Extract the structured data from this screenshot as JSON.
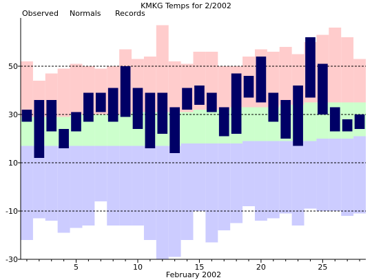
{
  "chart_data": {
    "type": "bar",
    "title": "KMKG Temps for 2/2002",
    "xlabel": "February 2002",
    "ylabel": "",
    "ylim": [
      -30,
      70
    ],
    "xlim": [
      0.5,
      28.5
    ],
    "x_ticks": [
      5,
      10,
      15,
      20,
      25
    ],
    "y_ticks": [
      -30,
      -10,
      10,
      30,
      50
    ],
    "dashed_gridlines_y": [
      -10,
      10,
      30,
      50
    ],
    "legend": {
      "placement": "top-left",
      "entries": [
        "Observed",
        "Normals",
        "Records"
      ]
    },
    "colors": {
      "observed": "#000066",
      "normals": "#ccffcc",
      "records_high": "#ffcccc",
      "records_low": "#ccccff",
      "legend_observed": "#000080",
      "legend_normals": "#008000",
      "legend_records": "#ff88ff"
    },
    "days": [
      1,
      2,
      3,
      4,
      5,
      6,
      7,
      8,
      9,
      10,
      11,
      12,
      13,
      14,
      15,
      16,
      17,
      18,
      19,
      20,
      21,
      22,
      23,
      24,
      25,
      26,
      27,
      28
    ],
    "series": [
      {
        "name": "Observed",
        "high": [
          32,
          36,
          36,
          24,
          31,
          39,
          39,
          41,
          50,
          41,
          39,
          39,
          33,
          41,
          42,
          39,
          33,
          47,
          46,
          54,
          39,
          36,
          42,
          62,
          51,
          33,
          28,
          30
        ],
        "low": [
          27,
          12,
          23,
          16,
          23,
          27,
          31,
          27,
          29,
          24,
          16,
          22,
          14,
          32,
          34,
          31,
          21,
          22,
          37,
          35,
          27,
          20,
          17,
          37,
          30,
          23,
          23,
          24
        ]
      },
      {
        "name": "Normals",
        "high": [
          29,
          29,
          29,
          29,
          30,
          30,
          30,
          30,
          30,
          31,
          31,
          31,
          31,
          31,
          32,
          32,
          32,
          33,
          33,
          33,
          33,
          34,
          34,
          35,
          35,
          35,
          35,
          35
        ]
      },
      {
        "name": "Normals low",
        "values": [
          17,
          17,
          17,
          17,
          17,
          17,
          17,
          17,
          17,
          17,
          17,
          17,
          17,
          18,
          18,
          18,
          18,
          18,
          19,
          19,
          19,
          19,
          19,
          19,
          20,
          20,
          20,
          21
        ]
      },
      {
        "name": "Records",
        "high": [
          52,
          44,
          47,
          49,
          51,
          50,
          49,
          50,
          57,
          53,
          54,
          67,
          52,
          51,
          56,
          56,
          50,
          50,
          54,
          57,
          56,
          58,
          55,
          60,
          63,
          66,
          62,
          53
        ]
      },
      {
        "name": "Records low",
        "values": [
          -22,
          -13,
          -14,
          -19,
          -17,
          -16,
          -6,
          -16,
          -16,
          -16,
          -22,
          -33,
          -29,
          -22,
          -10,
          -23,
          -18,
          -15,
          -8,
          -14,
          -13,
          -11,
          -16,
          -9,
          -10,
          -10,
          -12,
          -11
        ]
      }
    ]
  }
}
